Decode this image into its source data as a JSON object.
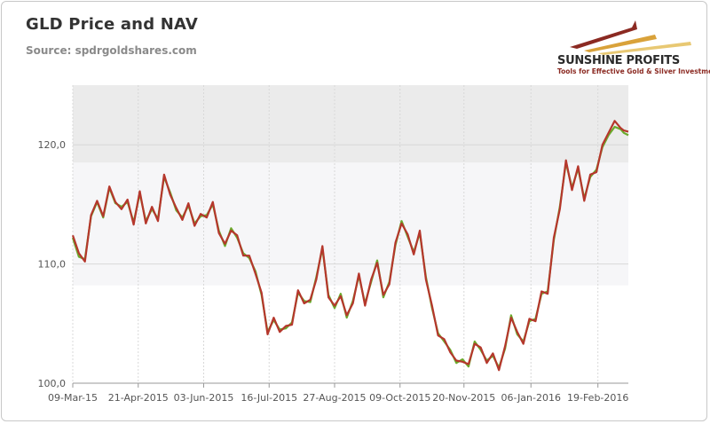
{
  "header": {
    "title": "GLD Price and NAV",
    "subtitle": "Source: spdrgoldshares.com"
  },
  "logo": {
    "name": "SUNSHINE PROFITS",
    "tagline": "Tools for Effective Gold & Silver Investments",
    "colors": [
      "#8b2a22",
      "#d9a23a",
      "#e8c873"
    ]
  },
  "colors": {
    "nav": "#6aaa2b",
    "price": "#b5372c",
    "band_dark": "#ebebeb",
    "band_light": "#f6f6f8",
    "grid": "#d8d8d8"
  },
  "chart_data": {
    "type": "line",
    "title": "GLD Price and NAV",
    "xlabel": "",
    "ylabel": "",
    "ylim": [
      100,
      125
    ],
    "yticks": [
      {
        "value": 100,
        "label": "100,0"
      },
      {
        "value": 110,
        "label": "110,0"
      },
      {
        "value": 120,
        "label": "120,0"
      }
    ],
    "xlim": [
      0,
      365
    ],
    "xticks": [
      {
        "day": 0,
        "label": "09-Mar-15"
      },
      {
        "day": 43,
        "label": "21-Apr-2015"
      },
      {
        "day": 86,
        "label": "03-Jun-2015"
      },
      {
        "day": 129,
        "label": "16-Jul-2015"
      },
      {
        "day": 172,
        "label": "27-Aug-2015"
      },
      {
        "day": 215,
        "label": "09-Oct-2015"
      },
      {
        "day": 257,
        "label": "20-Nov-2015"
      },
      {
        "day": 301,
        "label": "06-Jan-2016"
      },
      {
        "day": 345,
        "label": "19-Feb-2016"
      }
    ],
    "bands": [
      {
        "from": 118.5,
        "to": 125,
        "shade": "dark"
      },
      {
        "from": 108.2,
        "to": 118.5,
        "shade": "light"
      }
    ],
    "x": [
      0,
      4,
      8,
      12,
      16,
      20,
      24,
      28,
      32,
      36,
      40,
      44,
      48,
      52,
      56,
      60,
      64,
      68,
      72,
      76,
      80,
      84,
      88,
      92,
      96,
      100,
      104,
      108,
      112,
      116,
      120,
      124,
      128,
      132,
      136,
      140,
      144,
      148,
      152,
      156,
      160,
      164,
      168,
      172,
      176,
      180,
      184,
      188,
      192,
      196,
      200,
      204,
      208,
      212,
      216,
      220,
      224,
      228,
      232,
      236,
      240,
      244,
      248,
      252,
      256,
      260,
      264,
      268,
      272,
      276,
      280,
      284,
      288,
      292,
      296,
      300,
      304,
      308,
      312,
      316,
      320,
      324,
      328,
      332,
      336,
      340,
      344,
      348,
      352,
      356,
      360,
      362,
      365
    ],
    "series": [
      {
        "name": "NAV",
        "values": [
          112.2,
          110.6,
          110.4,
          114.0,
          115.2,
          113.9,
          116.4,
          115.1,
          114.8,
          115.2,
          113.5,
          115.9,
          113.6,
          114.6,
          113.8,
          117.3,
          116.0,
          114.5,
          113.9,
          114.9,
          113.4,
          114.0,
          114.1,
          115.0,
          112.8,
          111.5,
          113.0,
          112.2,
          110.9,
          110.5,
          109.4,
          107.4,
          104.3,
          105.3,
          104.5,
          104.6,
          105.1,
          107.6,
          106.9,
          106.8,
          108.9,
          111.3,
          107.4,
          106.3,
          107.5,
          105.5,
          106.9,
          109.0,
          106.7,
          108.5,
          110.3,
          107.2,
          108.5,
          111.6,
          113.6,
          112.3,
          111.0,
          112.6,
          108.9,
          106.3,
          104.2,
          103.5,
          102.8,
          101.7,
          102.0,
          101.4,
          103.5,
          102.8,
          101.9,
          102.3,
          101.3,
          102.9,
          105.7,
          104.1,
          103.5,
          105.2,
          105.4,
          107.5,
          107.7,
          112.0,
          114.8,
          118.5,
          116.4,
          118.0,
          115.5,
          117.3,
          117.9,
          119.8,
          120.8,
          121.5,
          121.3,
          121.0,
          120.8
        ]
      },
      {
        "name": "Price",
        "values": [
          112.4,
          110.9,
          110.2,
          114.1,
          115.3,
          114.0,
          116.5,
          115.2,
          114.6,
          115.4,
          113.3,
          116.1,
          113.4,
          114.8,
          113.6,
          117.5,
          115.8,
          114.7,
          113.7,
          115.1,
          113.2,
          114.2,
          113.9,
          115.2,
          112.6,
          111.7,
          112.8,
          112.4,
          110.7,
          110.7,
          109.2,
          107.6,
          104.1,
          105.5,
          104.3,
          104.8,
          104.9,
          107.8,
          106.7,
          107.0,
          108.7,
          111.5,
          107.2,
          106.5,
          107.3,
          105.7,
          106.7,
          109.2,
          106.5,
          108.7,
          110.1,
          107.4,
          108.3,
          111.8,
          113.4,
          112.5,
          110.8,
          112.8,
          108.7,
          106.5,
          104.0,
          103.7,
          102.6,
          101.9,
          101.8,
          101.6,
          103.3,
          103.0,
          101.7,
          102.5,
          101.1,
          103.1,
          105.5,
          104.3,
          103.3,
          105.4,
          105.2,
          107.7,
          107.5,
          112.2,
          114.6,
          118.7,
          116.2,
          118.2,
          115.3,
          117.5,
          117.7,
          120.0,
          121.0,
          122.0,
          121.4,
          121.2,
          121.1
        ]
      }
    ]
  }
}
